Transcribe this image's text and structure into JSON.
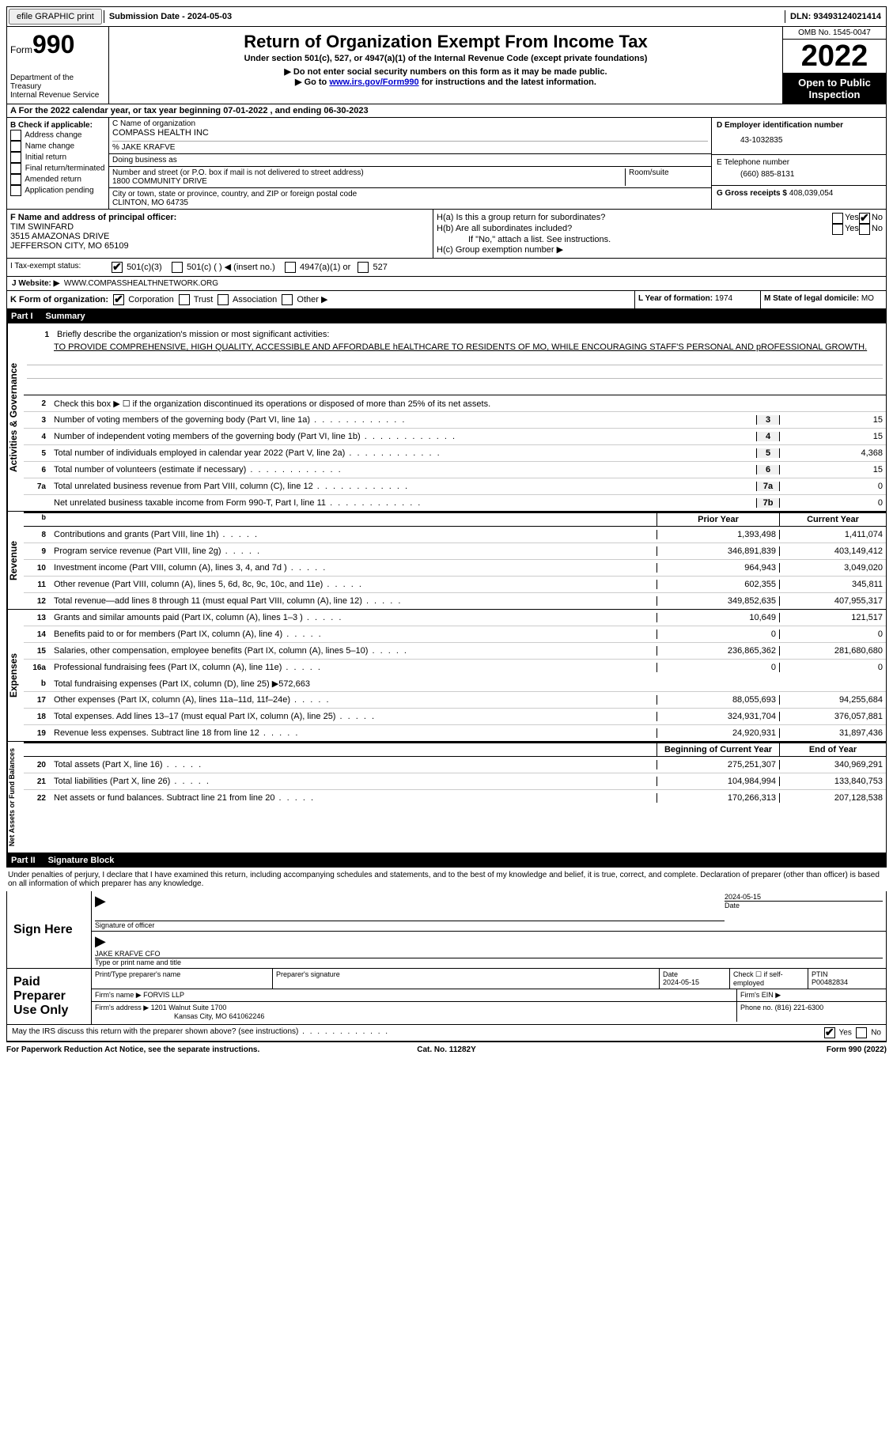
{
  "topbar": {
    "efile_label": "efile GRAPHIC print",
    "sub_date_label": "Submission Date - 2024-05-03",
    "dln_label": "DLN: 93493124021414"
  },
  "header": {
    "form_label": "Form",
    "form_num": "990",
    "dept": "Department of the Treasury",
    "service": "Internal Revenue Service",
    "title": "Return of Organization Exempt From Income Tax",
    "subtitle": "Under section 501(c), 527, or 4947(a)(1) of the Internal Revenue Code (except private foundations)",
    "note1": "▶ Do not enter social security numbers on this form as it may be made public.",
    "note2_prefix": "▶ Go to ",
    "note2_link": "www.irs.gov/Form990",
    "note2_suffix": " for instructions and the latest information.",
    "omb": "OMB No. 1545-0047",
    "year": "2022",
    "open_pub": "Open to Public Inspection"
  },
  "row_a": "A For the 2022 calendar year, or tax year beginning 07-01-2022   , and ending 06-30-2023",
  "col_b": {
    "title": "B Check if applicable:",
    "opts": [
      "Address change",
      "Name change",
      "Initial return",
      "Final return/terminated",
      "Amended return",
      "Application pending"
    ]
  },
  "col_c": {
    "name_label": "C Name of organization",
    "name": "COMPASS HEALTH INC",
    "care_of": "% JAKE KRAFVE",
    "dba_label": "Doing business as",
    "street_label": "Number and street (or P.O. box if mail is not delivered to street address)",
    "room_label": "Room/suite",
    "street": "1800 COMMUNITY DRIVE",
    "city_label": "City or town, state or province, country, and ZIP or foreign postal code",
    "city": "CLINTON, MO  64735"
  },
  "col_d": {
    "ein_label": "D Employer identification number",
    "ein": "43-1032835",
    "tel_label": "E Telephone number",
    "tel": "(660) 885-8131",
    "gross_label": "G Gross receipts $",
    "gross": "408,039,054"
  },
  "fgh": {
    "f_label": "F Name and address of principal officer:",
    "f_name": "TIM SWINFARD",
    "f_addr1": "3515 AMAZONAS DRIVE",
    "f_addr2": "JEFFERSON CITY, MO  65109",
    "ha": "H(a)  Is this a group return for subordinates?",
    "hb": "H(b)  Are all subordinates included?",
    "hb_note": "If \"No,\" attach a list. See instructions.",
    "hc": "H(c)  Group exemption number ▶",
    "yes": "Yes",
    "no": "No"
  },
  "status": {
    "label": "I   Tax-exempt status:",
    "o1": "501(c)(3)",
    "o2": "501(c) (   ) ◀ (insert no.)",
    "o3": "4947(a)(1) or",
    "o4": "527"
  },
  "website": {
    "label": "J   Website: ▶",
    "url": "WWW.COMPASSHEALTHNETWORK.ORG"
  },
  "klm": {
    "k_label": "K Form of organization:",
    "k_opts": [
      "Corporation",
      "Trust",
      "Association",
      "Other ▶"
    ],
    "l_label": "L Year of formation:",
    "l_val": "1974",
    "m_label": "M State of legal domicile:",
    "m_val": "MO"
  },
  "part1": {
    "header": "Part I",
    "title": "Summary",
    "l1_label": "Briefly describe the organization's mission or most significant activities:",
    "l1_text": "TO PROVIDE COMPREHENSIVE, HIGH QUALITY, ACCESSIBLE AND AFFORDABLE hEALTHCARE TO RESIDENTS OF MO, WHILE ENCOURAGING STAFF'S PERSONAL AND pROFESSIONAL GROWTH.",
    "l2": "Check this box ▶ ☐  if the organization discontinued its operations or disposed of more than 25% of its net assets.",
    "lines_ag": [
      {
        "n": "3",
        "t": "Number of voting members of the governing body (Part VI, line 1a)",
        "b": "3",
        "v": "15"
      },
      {
        "n": "4",
        "t": "Number of independent voting members of the governing body (Part VI, line 1b)",
        "b": "4",
        "v": "15"
      },
      {
        "n": "5",
        "t": "Total number of individuals employed in calendar year 2022 (Part V, line 2a)",
        "b": "5",
        "v": "4,368"
      },
      {
        "n": "6",
        "t": "Total number of volunteers (estimate if necessary)",
        "b": "6",
        "v": "15"
      },
      {
        "n": "7a",
        "t": "Total unrelated business revenue from Part VIII, column (C), line 12",
        "b": "7a",
        "v": "0"
      },
      {
        "n": "",
        "t": "Net unrelated business taxable income from Form 990-T, Part I, line 11",
        "b": "7b",
        "v": "0"
      }
    ],
    "prior_label": "Prior Year",
    "current_label": "Current Year",
    "beg_label": "Beginning of Current Year",
    "end_label": "End of Year",
    "revenue": [
      {
        "n": "8",
        "t": "Contributions and grants (Part VIII, line 1h)",
        "p": "1,393,498",
        "c": "1,411,074"
      },
      {
        "n": "9",
        "t": "Program service revenue (Part VIII, line 2g)",
        "p": "346,891,839",
        "c": "403,149,412"
      },
      {
        "n": "10",
        "t": "Investment income (Part VIII, column (A), lines 3, 4, and 7d )",
        "p": "964,943",
        "c": "3,049,020"
      },
      {
        "n": "11",
        "t": "Other revenue (Part VIII, column (A), lines 5, 6d, 8c, 9c, 10c, and 11e)",
        "p": "602,355",
        "c": "345,811"
      },
      {
        "n": "12",
        "t": "Total revenue—add lines 8 through 11 (must equal Part VIII, column (A), line 12)",
        "p": "349,852,635",
        "c": "407,955,317"
      }
    ],
    "expenses": [
      {
        "n": "13",
        "t": "Grants and similar amounts paid (Part IX, column (A), lines 1–3 )",
        "p": "10,649",
        "c": "121,517"
      },
      {
        "n": "14",
        "t": "Benefits paid to or for members (Part IX, column (A), line 4)",
        "p": "0",
        "c": "0"
      },
      {
        "n": "15",
        "t": "Salaries, other compensation, employee benefits (Part IX, column (A), lines 5–10)",
        "p": "236,865,362",
        "c": "281,680,680"
      },
      {
        "n": "16a",
        "t": "Professional fundraising fees (Part IX, column (A), line 11e)",
        "p": "0",
        "c": "0"
      }
    ],
    "l16b": "Total fundraising expenses (Part IX, column (D), line 25) ▶572,663",
    "expenses2": [
      {
        "n": "17",
        "t": "Other expenses (Part IX, column (A), lines 11a–11d, 11f–24e)",
        "p": "88,055,693",
        "c": "94,255,684"
      },
      {
        "n": "18",
        "t": "Total expenses. Add lines 13–17 (must equal Part IX, column (A), line 25)",
        "p": "324,931,704",
        "c": "376,057,881"
      },
      {
        "n": "19",
        "t": "Revenue less expenses. Subtract line 18 from line 12",
        "p": "24,920,931",
        "c": "31,897,436"
      }
    ],
    "netassets": [
      {
        "n": "20",
        "t": "Total assets (Part X, line 16)",
        "p": "275,251,307",
        "c": "340,969,291"
      },
      {
        "n": "21",
        "t": "Total liabilities (Part X, line 26)",
        "p": "104,984,994",
        "c": "133,840,753"
      },
      {
        "n": "22",
        "t": "Net assets or fund balances. Subtract line 21 from line 20",
        "p": "170,266,313",
        "c": "207,128,538"
      }
    ],
    "side_ag": "Activities & Governance",
    "side_rev": "Revenue",
    "side_exp": "Expenses",
    "side_na": "Net Assets or Fund Balances"
  },
  "part2": {
    "header": "Part II",
    "title": "Signature Block",
    "decl": "Under penalties of perjury, I declare that I have examined this return, including accompanying schedules and statements, and to the best of my knowledge and belief, it is true, correct, and complete. Declaration of preparer (other than officer) is based on all information of which preparer has any knowledge.",
    "sign_here": "Sign Here",
    "sig_officer": "Signature of officer",
    "sig_date": "2024-05-15",
    "date_label": "Date",
    "officer_name": "JAKE KRAFVE CFO",
    "type_name": "Type or print name and title",
    "paid_prep": "Paid Preparer Use Only",
    "prep_name_label": "Print/Type preparer's name",
    "prep_sig_label": "Preparer's signature",
    "prep_date_label": "Date",
    "prep_date": "2024-05-15",
    "check_if": "Check ☐ if self-employed",
    "ptin_label": "PTIN",
    "ptin": "P00482834",
    "firm_name_label": "Firm's name    ▶",
    "firm_name": "FORVIS LLP",
    "firm_ein_label": "Firm's EIN ▶",
    "firm_addr_label": "Firm's address ▶",
    "firm_addr1": "1201 Walnut Suite 1700",
    "firm_addr2": "Kansas City, MO  641062246",
    "phone_label": "Phone no.",
    "phone": "(816) 221-6300",
    "discuss": "May the IRS discuss this return with the preparer shown above? (see instructions)"
  },
  "footer": {
    "left": "For Paperwork Reduction Act Notice, see the separate instructions.",
    "center": "Cat. No. 11282Y",
    "right": "Form 990 (2022)"
  }
}
